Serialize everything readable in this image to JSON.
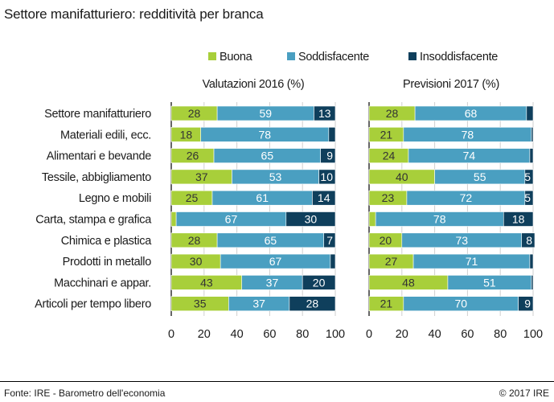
{
  "title": "Settore manifatturiero: redditività per branca",
  "source": "Fonte: IRE - Barometro dell'economia",
  "copyright": "© 2017 IRE",
  "colors": {
    "buona": "#a8cf3a",
    "soddisfacente": "#4a9fc1",
    "insoddisfacente": "#0f3f5c"
  },
  "chart_data": {
    "type": "bar",
    "orientation": "horizontal-stacked",
    "legend": [
      "Buona",
      "Soddisfacente",
      "Insoddisfacente"
    ],
    "legend_position": "top",
    "categories": [
      "Settore manifatturiero",
      "Materiali edili, ecc.",
      "Alimentari e bevande",
      "Tessile, abbigliamento",
      "Legno e mobili",
      "Carta, stampa e grafica",
      "Chimica e plastica",
      "Prodotti in metallo",
      "Macchinari e appar.",
      "Articoli per tempo libero"
    ],
    "panels": [
      {
        "title": "Valutazioni 2016 (%)",
        "series": [
          {
            "name": "Buona",
            "values": [
              28,
              18,
              26,
              37,
              25,
              3,
              28,
              30,
              43,
              35
            ]
          },
          {
            "name": "Soddisfacente",
            "values": [
              59,
              78,
              65,
              53,
              61,
              67,
              65,
              67,
              37,
              37
            ]
          },
          {
            "name": "Insoddisfacente",
            "values": [
              13,
              4,
              9,
              10,
              14,
              30,
              7,
              3,
              20,
              28
            ]
          }
        ]
      },
      {
        "title": "Previsioni 2017 (%)",
        "series": [
          {
            "name": "Buona",
            "values": [
              28,
              21,
              24,
              40,
              23,
              4,
              20,
              27,
              48,
              21
            ]
          },
          {
            "name": "Soddisfacente",
            "values": [
              68,
              78,
              74,
              55,
              72,
              78,
              73,
              71,
              51,
              70
            ]
          },
          {
            "name": "Insoddisfacente",
            "values": [
              4,
              1,
              2,
              5,
              5,
              18,
              8,
              2,
              1,
              9
            ]
          }
        ]
      }
    ],
    "xlim": [
      0,
      100
    ],
    "xticks": [
      0,
      20,
      40,
      60,
      80,
      100
    ],
    "grid": true,
    "label_threshold": 5
  }
}
